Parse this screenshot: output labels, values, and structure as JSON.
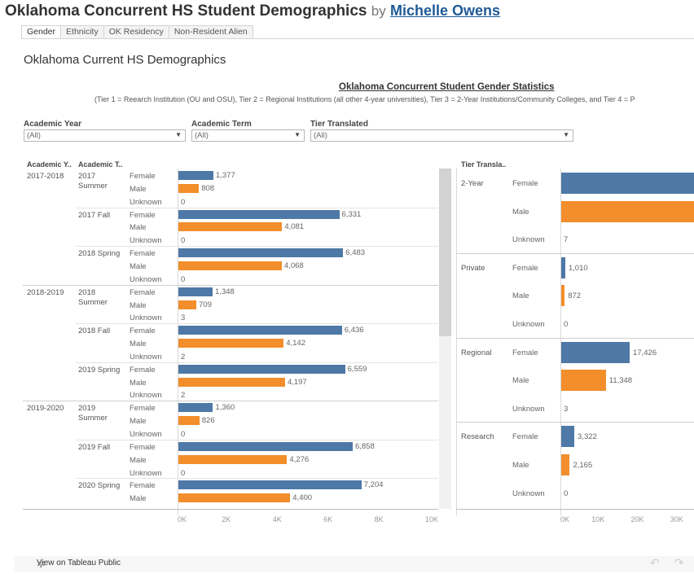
{
  "viz": {
    "title": "Oklahoma Concurrent HS Student Demographics",
    "by": "by",
    "author": "Michelle Owens"
  },
  "tabs": [
    "Gender",
    "Ethnicity",
    "OK Residency",
    "Non-Resident Alien"
  ],
  "dashboard_title": "Oklahoma Current HS Demographics",
  "chart_title": "Oklahoma Concurrent Student Gender Statistics",
  "chart_subtitle": "(Tier 1 = Reearch Institution (OU and OSU), Tier 2 = Regional Institutions (all other 4-year universities), Tier 3 = 2-Year Institutions/Community Colleges,  and Tier 4 = P",
  "filters": [
    {
      "label": "Academic Year",
      "value": "(All)"
    },
    {
      "label": "Academic Term",
      "value": "(All)"
    },
    {
      "label": "Tier Translated",
      "value": "(All)"
    }
  ],
  "left_headers": {
    "year": "Academic Y..",
    "term": "Academic T.."
  },
  "right_headers": {
    "tier": "Tier Transla.."
  },
  "colors": {
    "female": "#4e79a7",
    "male": "#f28e2b"
  },
  "chart_data": [
    {
      "type": "bar",
      "orientation": "horizontal",
      "xlim": [
        0,
        10000
      ],
      "ticks": [
        "0K",
        "2K",
        "4K",
        "6K",
        "8K",
        "10K"
      ],
      "rows": [
        {
          "year": "2017-2018",
          "term": "2017 Summer",
          "values": [
            1377,
            808,
            0
          ]
        },
        {
          "year": "",
          "term": "2017 Fall",
          "values": [
            6331,
            4081,
            0
          ]
        },
        {
          "year": "",
          "term": "2018 Spring",
          "values": [
            6483,
            4068,
            0
          ]
        },
        {
          "year": "2018-2019",
          "term": "2018 Summer",
          "values": [
            1348,
            709,
            3
          ]
        },
        {
          "year": "",
          "term": "2018 Fall",
          "values": [
            6436,
            4142,
            2
          ]
        },
        {
          "year": "",
          "term": "2019 Spring",
          "values": [
            6559,
            4197,
            2
          ]
        },
        {
          "year": "2019-2020",
          "term": "2019 Summer",
          "values": [
            1360,
            826,
            0
          ]
        },
        {
          "year": "",
          "term": "2019 Fall",
          "values": [
            6858,
            4276,
            0
          ]
        },
        {
          "year": "",
          "term": "2020 Spring",
          "values": [
            7204,
            4400,
            null
          ]
        }
      ],
      "genders": [
        "Female",
        "Male",
        "Unknown"
      ]
    },
    {
      "type": "bar",
      "orientation": "horizontal",
      "xlim": [
        0,
        34000
      ],
      "ticks": [
        "0K",
        "10K",
        "20K",
        "30K"
      ],
      "rows": [
        {
          "tier": "2-Year",
          "values": [
            null,
            null,
            7
          ]
        },
        {
          "tier": "Private",
          "values": [
            1010,
            872,
            0
          ]
        },
        {
          "tier": "Regional",
          "values": [
            17426,
            11348,
            3
          ]
        },
        {
          "tier": "Research",
          "values": [
            3322,
            2165,
            0
          ]
        }
      ],
      "genders": [
        "Female",
        "Male",
        "Unknown"
      ]
    }
  ],
  "footer": {
    "link": "View on Tableau Public",
    "undo": "↶",
    "redo": "↷",
    "icon": "✲"
  }
}
